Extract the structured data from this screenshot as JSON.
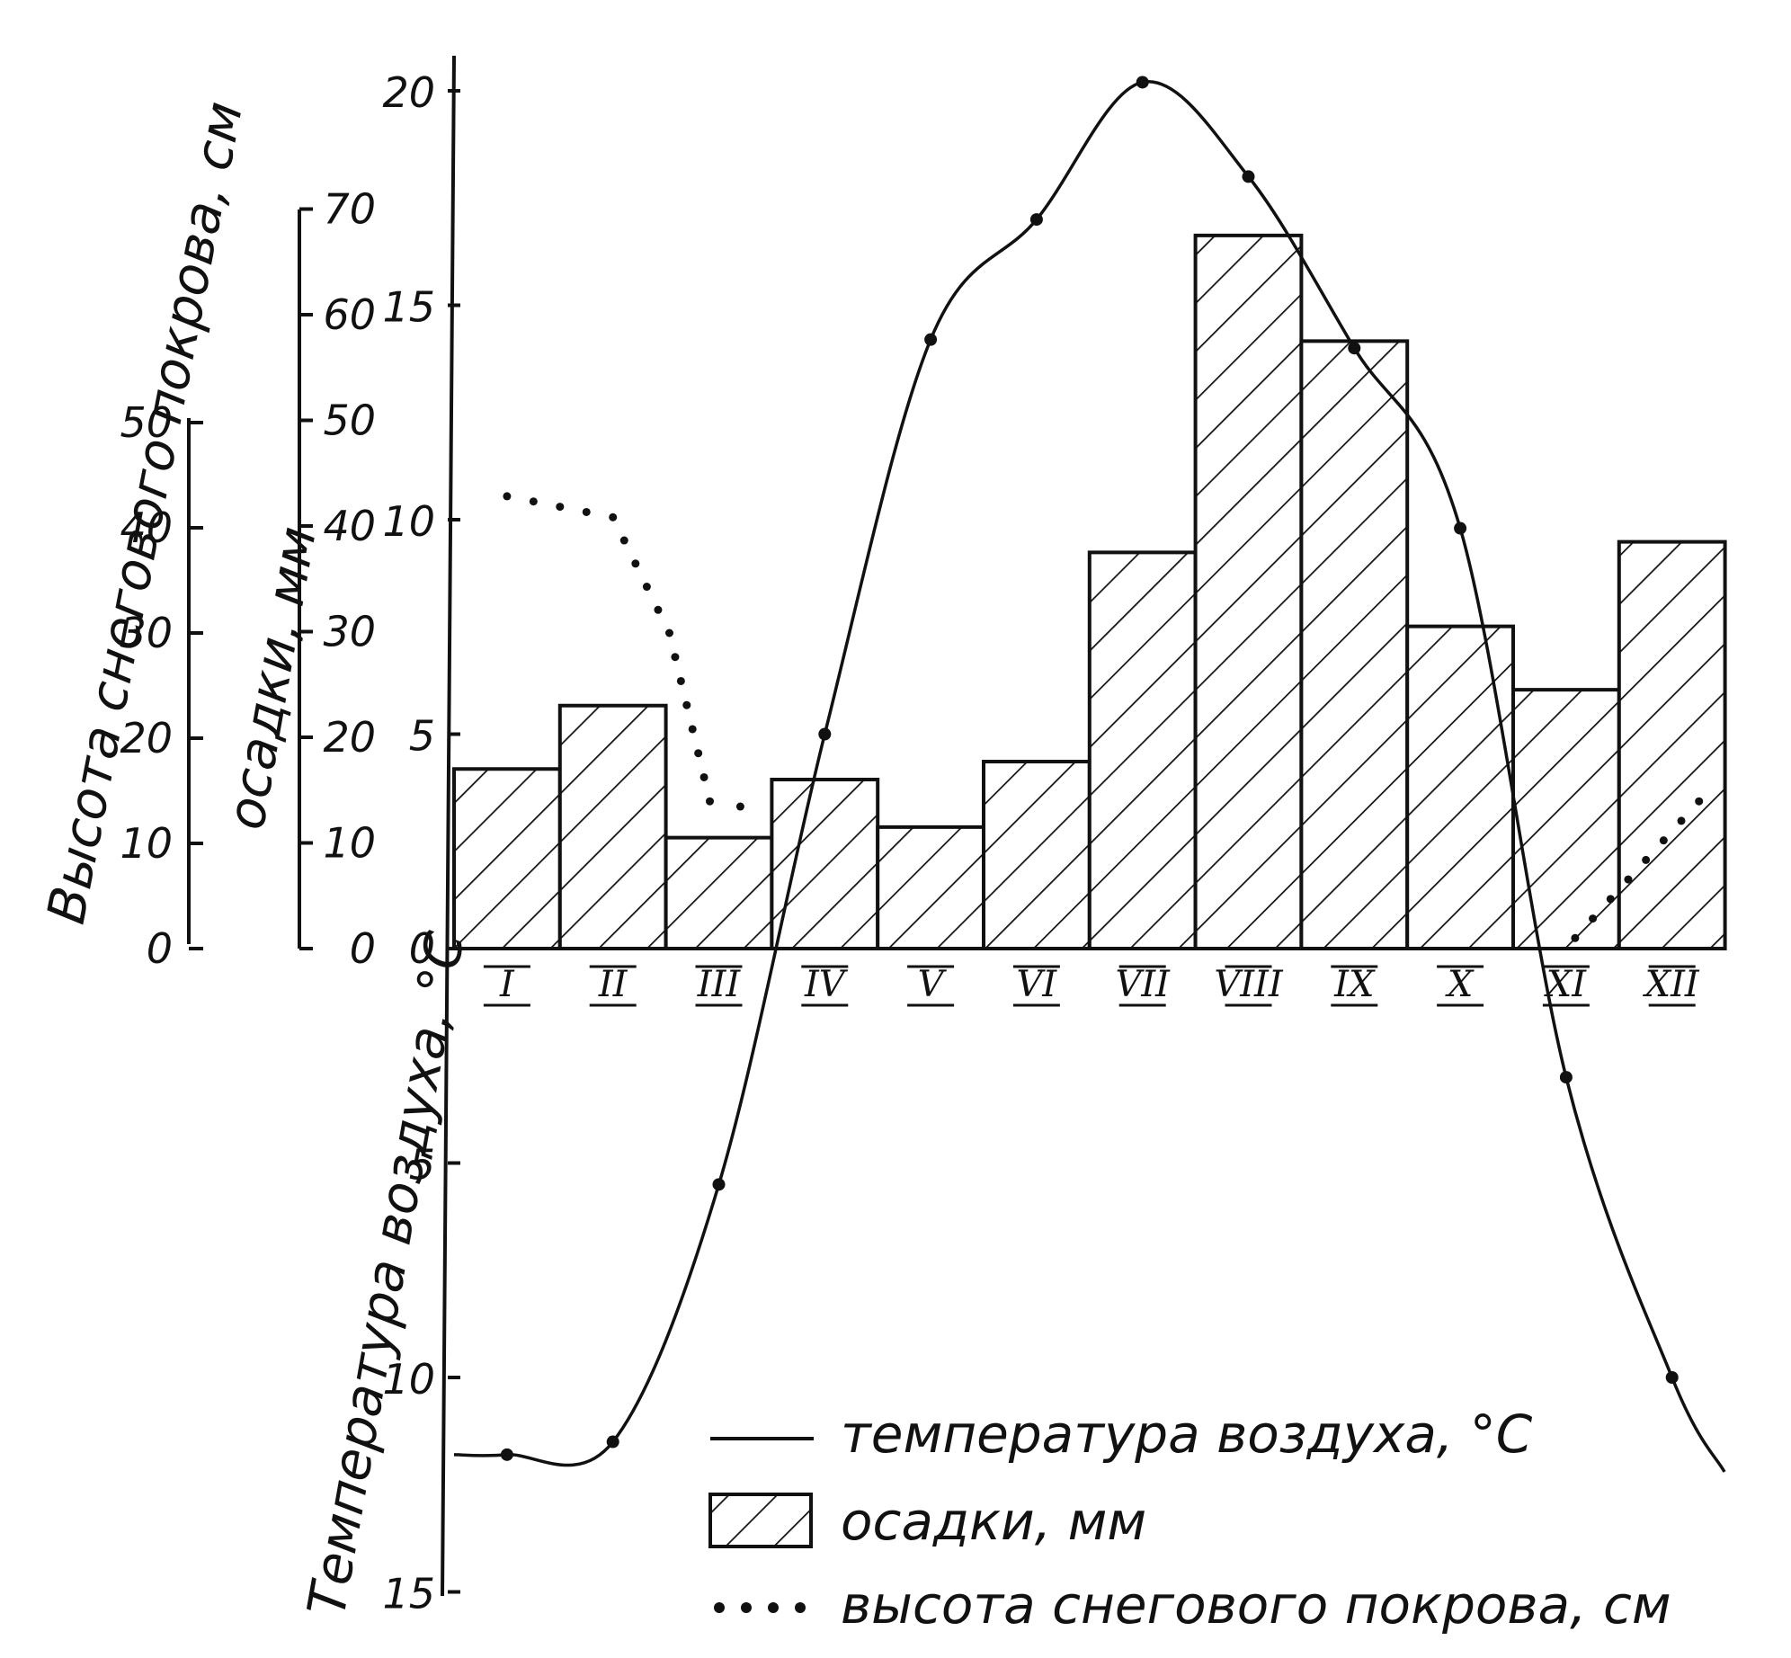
{
  "chart_data": {
    "type": "climatogram",
    "categories": [
      "I",
      "II",
      "III",
      "IV",
      "V",
      "VI",
      "VII",
      "VIII",
      "IX",
      "X",
      "XI",
      "XII"
    ],
    "series": [
      {
        "name": "температура воздуха, °С",
        "type": "line",
        "axis": "temperature",
        "values": [
          -11.8,
          -11.5,
          -5.5,
          5.0,
          14.2,
          17.0,
          20.2,
          18.0,
          14.0,
          9.8,
          -3.0,
          -10.0
        ]
      },
      {
        "name": "осадки, мм",
        "type": "bar",
        "axis": "precipitation",
        "values": [
          17,
          23,
          10.5,
          16,
          11.5,
          17.7,
          37.5,
          67.5,
          57.5,
          30.5,
          24.5,
          38.5
        ]
      },
      {
        "name": "высота снегового покрова, см",
        "type": "dotted",
        "axis": "snow",
        "points": [
          {
            "x": "I",
            "y": 43
          },
          {
            "x": "II",
            "y": 41
          },
          {
            "x": "III",
            "y": 30
          },
          {
            "x": "III",
            "y": 14
          },
          {
            "x": "IV",
            "y": 13
          },
          {
            "x": "XI",
            "y": 1
          },
          {
            "x": "XII",
            "y": 14
          }
        ]
      }
    ],
    "axes": {
      "snow": {
        "title": "Высота снегового покрова, см",
        "ticks": [
          "0",
          "10",
          "20",
          "30",
          "40",
          "50"
        ],
        "range": [
          0,
          50
        ]
      },
      "precipitation": {
        "title": "осадки, мм",
        "ticks": [
          "0",
          "10",
          "20",
          "30",
          "40",
          "50",
          "60",
          "70"
        ],
        "range": [
          0,
          70
        ]
      },
      "temperature": {
        "title": "Температура воздуха, °С",
        "ticks": [
          "20",
          "15",
          "10",
          "5",
          "0",
          "5",
          "10",
          "15"
        ],
        "range": [
          -15,
          20
        ]
      }
    },
    "legend": [
      {
        "symbol": "line",
        "label": "температура воздуха, °С"
      },
      {
        "symbol": "hatched-box",
        "label": "осадки, мм"
      },
      {
        "symbol": "dots",
        "label": "высота снегового покрова, см"
      }
    ],
    "legend_position": "bottom-right",
    "grid": false
  }
}
